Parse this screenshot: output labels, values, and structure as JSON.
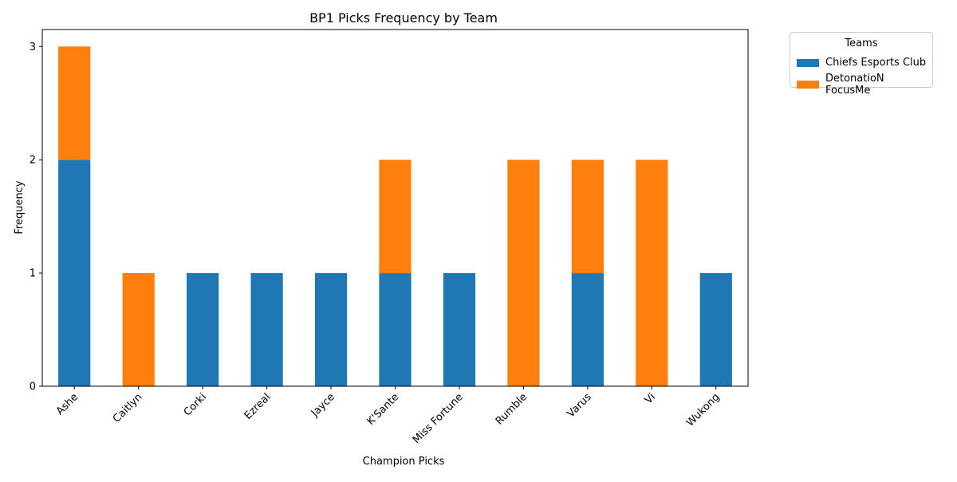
{
  "chart_data": {
    "type": "bar",
    "stacked": true,
    "title": "BP1 Picks Frequency by Team",
    "xlabel": "Champion Picks",
    "ylabel": "Frequency",
    "categories": [
      "Ashe",
      "Caitlyn",
      "Corki",
      "Ezreal",
      "Jayce",
      "K'Sante",
      "Miss Fortune",
      "Rumble",
      "Varus",
      "Vi",
      "Wukong"
    ],
    "series": [
      {
        "name": "Chiefs Esports Club",
        "color": "#1f77b4",
        "values": [
          2,
          0,
          1,
          1,
          1,
          1,
          1,
          0,
          1,
          0,
          1
        ]
      },
      {
        "name": "DetonatioN FocusMe",
        "color": "#ff7f0e",
        "values": [
          1,
          1,
          0,
          0,
          0,
          1,
          0,
          2,
          1,
          2,
          0
        ]
      }
    ],
    "yticks": [
      0,
      1,
      2,
      3
    ],
    "ylim": [
      0,
      3.15
    ],
    "grid": false,
    "legend": {
      "title": "Teams",
      "position": "outside-top-right"
    }
  }
}
